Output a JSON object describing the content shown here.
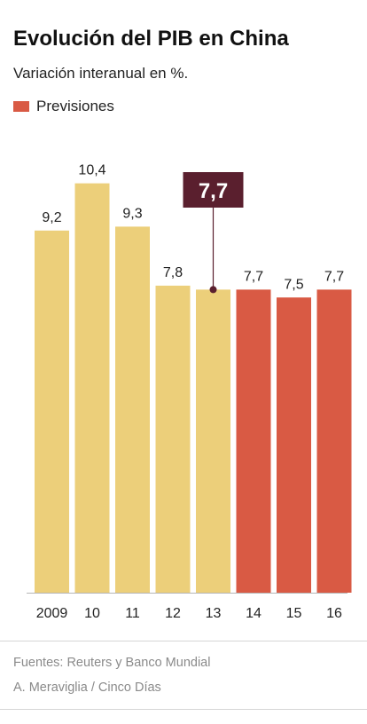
{
  "header": {
    "title": "Evolución del PIB en China",
    "subtitle": "Variación interanual en %."
  },
  "legend": {
    "label": "Previsiones",
    "color": "#d95a44"
  },
  "colors": {
    "actual": "#eccf7a",
    "forecast": "#d95a44",
    "highlight_box": "#5a1f2e",
    "axis": "#b5b5b5"
  },
  "chart_data": {
    "type": "bar",
    "categories": [
      "2009",
      "10",
      "11",
      "12",
      "13",
      "14",
      "15",
      "16"
    ],
    "values": [
      9.2,
      10.4,
      9.3,
      7.8,
      7.7,
      7.7,
      7.5,
      7.7
    ],
    "value_labels": [
      "9,2",
      "10,4",
      "9,3",
      "7,8",
      "",
      "7,7",
      "7,5",
      "7,7"
    ],
    "forecast": [
      false,
      false,
      false,
      false,
      false,
      true,
      true,
      true
    ],
    "highlight": {
      "category": "13",
      "label": "7,7"
    },
    "ylim": [
      0,
      11
    ],
    "grid": false
  },
  "footer": {
    "sources": "Fuentes: Reuters y Banco Mundial",
    "credit": "A. Meraviglia / Cinco Días"
  }
}
